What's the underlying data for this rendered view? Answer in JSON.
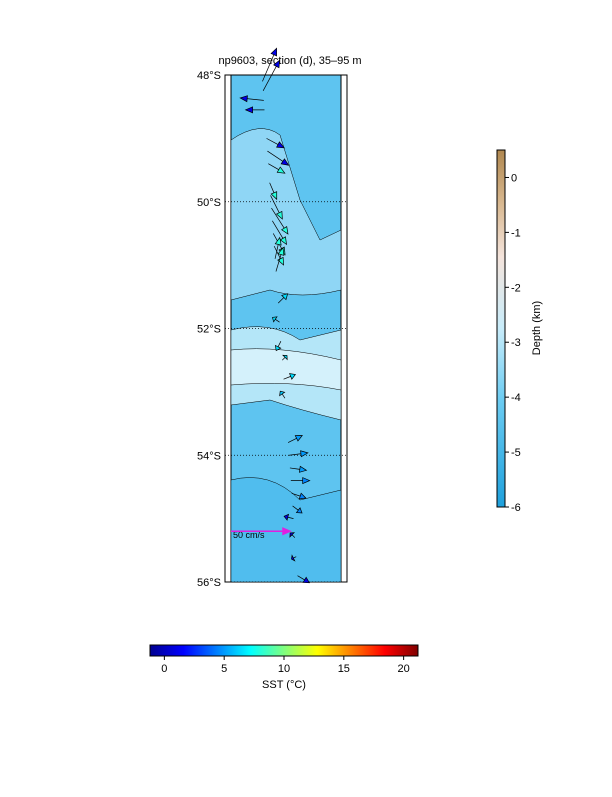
{
  "title": "np9603, section (d), 35–95 m",
  "lat_axis": {
    "lim": [
      48,
      56
    ],
    "ticks": [
      {
        "value": 48,
        "label": "48°S"
      },
      {
        "value": 50,
        "label": "50°S"
      },
      {
        "value": 52,
        "label": "52°S"
      },
      {
        "value": 54,
        "label": "54°S"
      },
      {
        "value": 56,
        "label": "56°S"
      }
    ]
  },
  "scale_arrow": {
    "value": 50,
    "label": "50 cm/s",
    "lat": 55.2,
    "color": "#e020e0"
  },
  "depth_bar": {
    "label": "Depth (km)",
    "lim": [
      0.5,
      -6
    ],
    "ticks": [
      0,
      -1,
      -2,
      -3,
      -4,
      -5,
      -6
    ]
  },
  "sst_bar": {
    "label": "SST (°C)",
    "lim": [
      -1.2,
      21.2
    ],
    "ticks": [
      0,
      5,
      10,
      15,
      20
    ]
  },
  "vectors": [
    {
      "lat": 48.1,
      "u": 12,
      "v": 28,
      "sst": 1
    },
    {
      "lat": 48.25,
      "u": 14,
      "v": 26,
      "sst": 1
    },
    {
      "lat": 48.4,
      "u": -20,
      "v": 2,
      "sst": 1
    },
    {
      "lat": 48.55,
      "u": -16,
      "v": 0,
      "sst": 1
    },
    {
      "lat": 49.0,
      "u": 15,
      "v": -8,
      "sst": 1
    },
    {
      "lat": 49.2,
      "u": 18,
      "v": -12,
      "sst": 1
    },
    {
      "lat": 49.4,
      "u": 14,
      "v": -8,
      "sst": 8
    },
    {
      "lat": 49.7,
      "u": 6,
      "v": -14,
      "sst": 8
    },
    {
      "lat": 49.9,
      "u": 10,
      "v": -20,
      "sst": 8
    },
    {
      "lat": 50.1,
      "u": 14,
      "v": -22,
      "sst": 8
    },
    {
      "lat": 50.3,
      "u": 12,
      "v": -20,
      "sst": 8
    },
    {
      "lat": 50.5,
      "u": 10,
      "v": -18,
      "sst": 8
    },
    {
      "lat": 50.7,
      "u": 8,
      "v": -16,
      "sst": 8
    },
    {
      "lat": 50.9,
      "u": 4,
      "v": 18,
      "sst": 8
    },
    {
      "lat": 51.1,
      "u": 6,
      "v": 20,
      "sst": 8
    },
    {
      "lat": 51.6,
      "u": 8,
      "v": 8,
      "sst": 6.5
    },
    {
      "lat": 51.9,
      "u": -6,
      "v": 4,
      "sst": 6.5
    },
    {
      "lat": 52.2,
      "u": -4,
      "v": -8,
      "sst": 6.5
    },
    {
      "lat": 52.5,
      "u": 4,
      "v": 4,
      "sst": 6.5
    },
    {
      "lat": 52.8,
      "u": 10,
      "v": 4,
      "sst": 6.5
    },
    {
      "lat": 53.1,
      "u": -4,
      "v": 6,
      "sst": 6
    },
    {
      "lat": 53.8,
      "u": 12,
      "v": 6,
      "sst": 5
    },
    {
      "lat": 54.0,
      "u": 16,
      "v": 2,
      "sst": 5
    },
    {
      "lat": 54.2,
      "u": 14,
      "v": -2,
      "sst": 5
    },
    {
      "lat": 54.4,
      "u": 16,
      "v": 0,
      "sst": 4.5
    },
    {
      "lat": 54.6,
      "u": 12,
      "v": -4,
      "sst": 4.5
    },
    {
      "lat": 54.8,
      "u": 8,
      "v": -6,
      "sst": 4.5
    },
    {
      "lat": 55.0,
      "u": -8,
      "v": 2,
      "sst": 1
    },
    {
      "lat": 55.3,
      "u": -4,
      "v": 4,
      "sst": 1
    },
    {
      "lat": 55.6,
      "u": -4,
      "v": -2,
      "sst": 1
    },
    {
      "lat": 55.9,
      "u": 10,
      "v": -6,
      "sst": 1
    }
  ]
}
